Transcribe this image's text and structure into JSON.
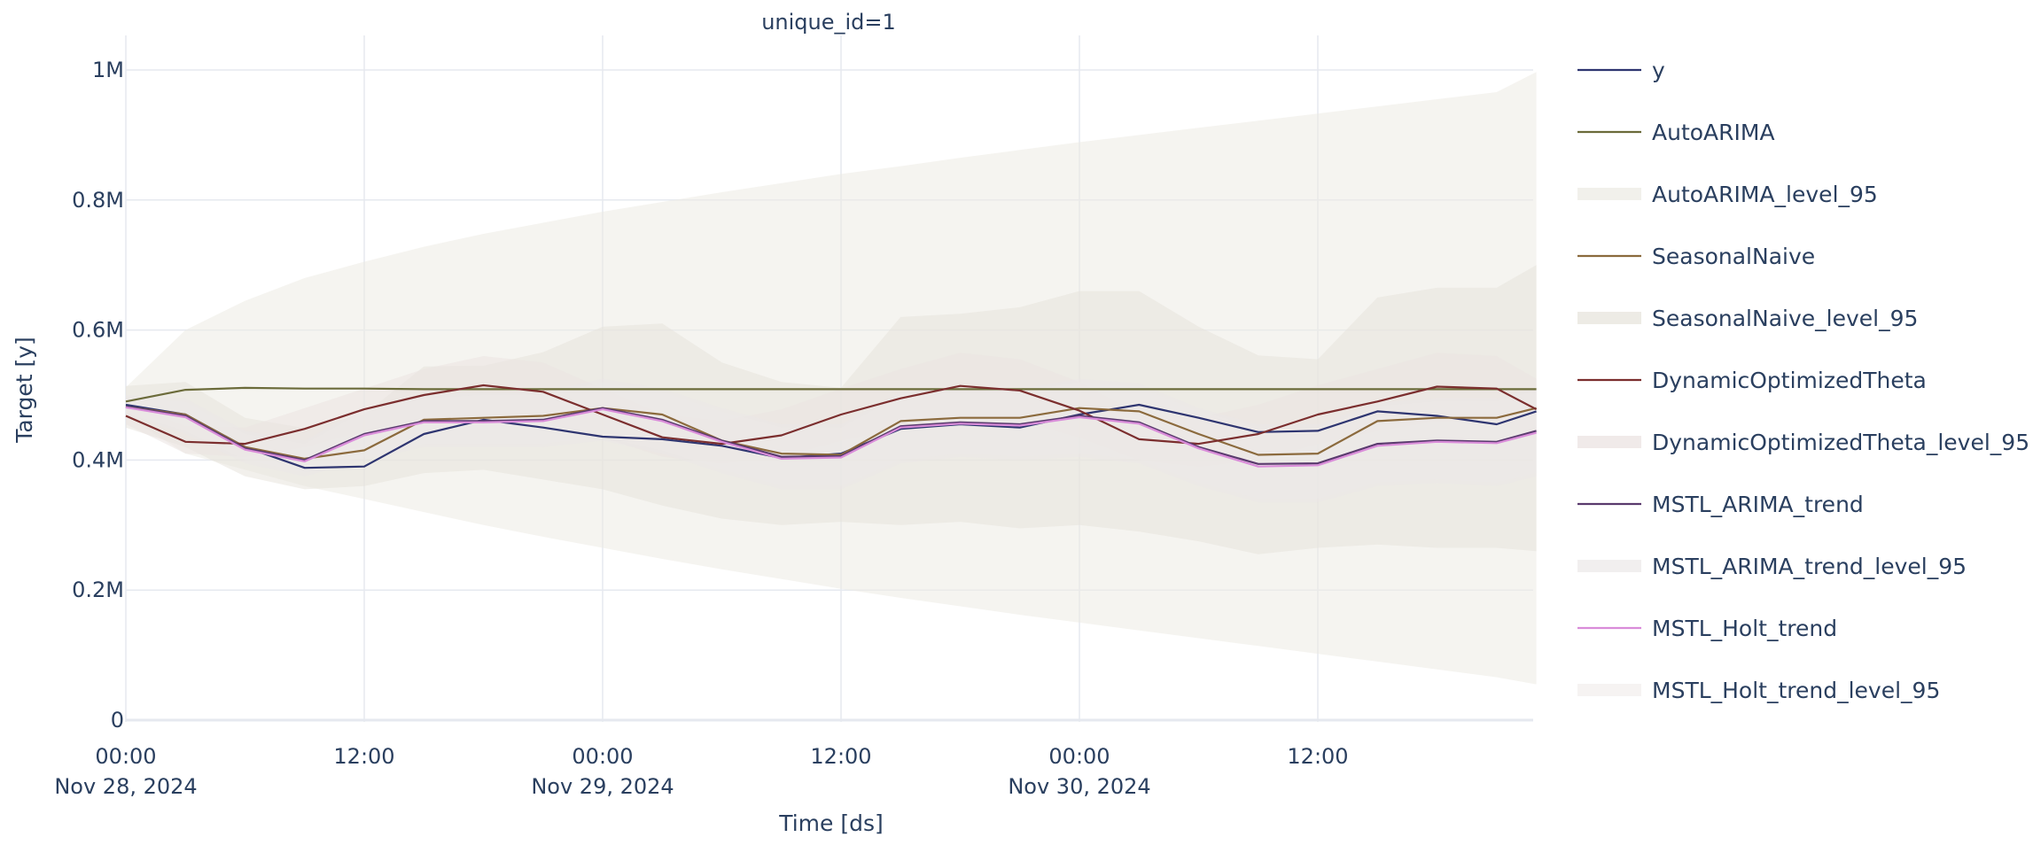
{
  "chart_data": {
    "type": "line",
    "title": "unique_id=1",
    "xlabel": "Time [ds]",
    "ylabel": "Target [y]",
    "x_range": [
      "2024-11-28 00:00",
      "2024-11-30 23:00"
    ],
    "ylim": [
      0,
      1000000
    ],
    "y_ticks": [
      {
        "value": 0,
        "label": "0"
      },
      {
        "value": 200000,
        "label": "0.2M"
      },
      {
        "value": 400000,
        "label": "0.4M"
      },
      {
        "value": 600000,
        "label": "0.6M"
      },
      {
        "value": 800000,
        "label": "0.8M"
      },
      {
        "value": 1000000,
        "label": "1M"
      }
    ],
    "x_ticks": [
      {
        "value": "2024-11-28 00:00",
        "line1": "00:00",
        "line2": "Nov 28, 2024"
      },
      {
        "value": "2024-11-28 12:00",
        "line1": "12:00",
        "line2": ""
      },
      {
        "value": "2024-11-29 00:00",
        "line1": "00:00",
        "line2": "Nov 29, 2024"
      },
      {
        "value": "2024-11-29 12:00",
        "line1": "12:00",
        "line2": ""
      },
      {
        "value": "2024-11-30 00:00",
        "line1": "00:00",
        "line2": "Nov 30, 2024"
      },
      {
        "value": "2024-11-30 12:00",
        "line1": "12:00",
        "line2": ""
      }
    ],
    "grid": true,
    "legend_position": "right",
    "x_times": [
      "2024-11-28 00:00",
      "2024-11-28 03:00",
      "2024-11-28 06:00",
      "2024-11-28 09:00",
      "2024-11-28 12:00",
      "2024-11-28 15:00",
      "2024-11-28 18:00",
      "2024-11-28 21:00",
      "2024-11-29 00:00",
      "2024-11-29 03:00",
      "2024-11-29 06:00",
      "2024-11-29 09:00",
      "2024-11-29 12:00",
      "2024-11-29 15:00",
      "2024-11-29 18:00",
      "2024-11-29 21:00",
      "2024-11-30 00:00",
      "2024-11-30 03:00",
      "2024-11-30 06:00",
      "2024-11-30 09:00",
      "2024-11-30 12:00",
      "2024-11-30 15:00",
      "2024-11-30 18:00",
      "2024-11-30 21:00",
      "2024-11-30 23:00"
    ],
    "series": [
      {
        "name": "y",
        "kind": "line",
        "color": "#2e3570",
        "values": [
          485000,
          470000,
          420000,
          388000,
          390000,
          440000,
          462000,
          450000,
          436000,
          432000,
          422000,
          403000,
          410000,
          448000,
          455000,
          450000,
          470000,
          485000,
          465000,
          443000,
          445000,
          475000,
          468000,
          455000,
          475000
        ]
      },
      {
        "name": "AutoARIMA",
        "kind": "line",
        "color": "#6b6b3a",
        "values": [
          490000,
          508000,
          511000,
          510000,
          510000,
          509000,
          509000,
          509000,
          509000,
          509000,
          509000,
          509000,
          509000,
          509000,
          509000,
          509000,
          509000,
          509000,
          509000,
          509000,
          509000,
          509000,
          509000,
          509000,
          509000
        ]
      },
      {
        "name": "AutoARIMA_level_95",
        "kind": "band",
        "color": "#ecebe4",
        "opacity": 0.55,
        "lower": [
          468000,
          410000,
          385000,
          360000,
          340000,
          320000,
          300000,
          282000,
          265000,
          248000,
          232000,
          217000,
          202000,
          188000,
          175000,
          162000,
          150000,
          138000,
          126000,
          114000,
          102000,
          90000,
          78000,
          66000,
          55000
        ],
        "upper": [
          512000,
          600000,
          645000,
          680000,
          705000,
          728000,
          748000,
          765000,
          782000,
          797000,
          812000,
          826000,
          840000,
          852000,
          865000,
          877000,
          889000,
          900000,
          911000,
          922000,
          933000,
          944000,
          955000,
          966000,
          997000
        ]
      },
      {
        "name": "SeasonalNaive",
        "kind": "line",
        "color": "#8b6a3d",
        "values": [
          482000,
          470000,
          420000,
          402000,
          415000,
          462000,
          465000,
          468000,
          480000,
          470000,
          430000,
          410000,
          408000,
          460000,
          465000,
          465000,
          480000,
          475000,
          440000,
          408000,
          410000,
          460000,
          465000,
          465000,
          480000
        ]
      },
      {
        "name": "SeasonalNaive_level_95",
        "kind": "band",
        "color": "#e6e2da",
        "opacity": 0.5,
        "lower": [
          450000,
          420000,
          375000,
          355000,
          360000,
          380000,
          385000,
          370000,
          355000,
          330000,
          310000,
          300000,
          305000,
          300000,
          305000,
          295000,
          300000,
          290000,
          275000,
          255000,
          265000,
          270000,
          265000,
          265000,
          260000
        ]
      },
      {
        "name": "DynamicOptimizedTheta",
        "kind": "line",
        "color": "#7b2e2e",
        "values": [
          468000,
          428000,
          425000,
          448000,
          478000,
          500000,
          515000,
          505000,
          470000,
          435000,
          425000,
          438000,
          470000,
          495000,
          514000,
          507000,
          476000,
          432000,
          425000,
          440000,
          470000,
          490000,
          513000,
          510000,
          478000
        ]
      },
      {
        "name": "DynamicOptimizedTheta_level_95",
        "kind": "band",
        "color": "#ebe3e1",
        "opacity": 0.55,
        "lower": [
          455000,
          410000,
          405000,
          420000,
          445000,
          460000,
          470000,
          460000,
          435000,
          405000,
          395000,
          405000,
          430000,
          450000,
          465000,
          460000,
          435000,
          400000,
          390000,
          400000,
          425000,
          445000,
          460000,
          460000,
          430000
        ],
        "upper": [
          488000,
          452000,
          450000,
          480000,
          510000,
          540000,
          560000,
          550000,
          510000,
          470000,
          460000,
          478000,
          510000,
          540000,
          565000,
          555000,
          520000,
          470000,
          465000,
          485000,
          515000,
          540000,
          565000,
          560000,
          525000
        ]
      },
      {
        "name": "MSTL_ARIMA_trend",
        "kind": "line",
        "color": "#5a3a6e",
        "values": [
          482000,
          468000,
          418000,
          400000,
          440000,
          460000,
          460000,
          462000,
          480000,
          462000,
          430000,
          405000,
          406000,
          452000,
          458000,
          455000,
          468000,
          458000,
          420000,
          394000,
          395000,
          425000,
          430000,
          428000,
          445000
        ]
      },
      {
        "name": "MSTL_ARIMA_trend_level_95",
        "kind": "band",
        "color": "#eae7e6",
        "opacity": 0.45,
        "lower": [
          470000,
          440000,
          395000,
          375000,
          400000,
          420000,
          420000,
          420000,
          430000,
          410000,
          380000,
          355000,
          355000,
          395000,
          405000,
          400000,
          405000,
          395000,
          360000,
          335000,
          335000,
          360000,
          365000,
          360000,
          375000
        ],
        "upper": [
          500000,
          495000,
          445000,
          430000,
          480000,
          500000,
          505000,
          505000,
          525000,
          510000,
          480000,
          455000,
          455000,
          505000,
          510000,
          510000,
          525000,
          518000,
          480000,
          455000,
          455000,
          488000,
          495000,
          495000,
          512000
        ]
      },
      {
        "name": "MSTL_Holt_trend",
        "kind": "line",
        "color": "#d98cd9",
        "values": [
          481000,
          466000,
          416000,
          398000,
          438000,
          458000,
          458000,
          460000,
          478000,
          460000,
          428000,
          402000,
          404000,
          450000,
          456000,
          453000,
          466000,
          456000,
          418000,
          390000,
          392000,
          422000,
          428000,
          426000,
          442000
        ]
      },
      {
        "name": "MSTL_Holt_trend_level_95",
        "kind": "band",
        "color": "#efeae8",
        "opacity": 0.35,
        "lower": [
          472000,
          445000,
          400000,
          380000,
          405000,
          425000,
          425000,
          425000,
          435000,
          415000,
          385000,
          360000,
          360000,
          400000,
          410000,
          405000,
          410000,
          400000,
          365000,
          340000,
          340000,
          365000,
          370000,
          365000,
          380000
        ],
        "upper": [
          495000,
          490000,
          440000,
          425000,
          475000,
          495000,
          500000,
          500000,
          520000,
          505000,
          475000,
          450000,
          450000,
          500000,
          505000,
          505000,
          520000,
          513000,
          475000,
          450000,
          450000,
          483000,
          490000,
          490000,
          507000
        ]
      }
    ]
  }
}
